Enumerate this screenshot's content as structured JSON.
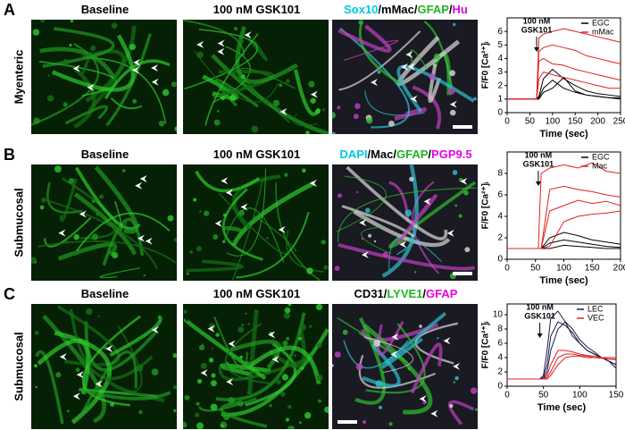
{
  "panels": [
    {
      "letter": "A",
      "row_label": "Myenteric",
      "images": [
        {
          "title": [
            {
              "text": "Baseline",
              "color": "#000000"
            }
          ]
        },
        {
          "title": [
            {
              "text": "100 nM GSK101",
              "color": "#000000"
            }
          ]
        },
        {
          "title": [
            {
              "text": "Sox10",
              "color": "#00c8e6"
            },
            {
              "text": "/mMac/",
              "color": "#000000"
            },
            {
              "text": "GFAP",
              "color": "#22b422"
            },
            {
              "text": "/",
              "color": "#000000"
            },
            {
              "text": "Hu",
              "color": "#e600e6"
            }
          ]
        }
      ]
    },
    {
      "letter": "B",
      "row_label": "Submucosal",
      "images": [
        {
          "title": [
            {
              "text": "Baseline",
              "color": "#000000"
            }
          ]
        },
        {
          "title": [
            {
              "text": "100 nM GSK101",
              "color": "#000000"
            }
          ]
        },
        {
          "title": [
            {
              "text": "DAPI",
              "color": "#00c8e6"
            },
            {
              "text": "/Mac/",
              "color": "#000000"
            },
            {
              "text": "GFAP",
              "color": "#22b422"
            },
            {
              "text": "/",
              "color": "#000000"
            },
            {
              "text": "PGP9.5",
              "color": "#e600e6"
            }
          ]
        }
      ]
    },
    {
      "letter": "C",
      "row_label": "Submucosal",
      "images": [
        {
          "title": [
            {
              "text": "Baseline",
              "color": "#000000"
            }
          ]
        },
        {
          "title": [
            {
              "text": "100 nM GSK101",
              "color": "#000000"
            }
          ]
        },
        {
          "title": [
            {
              "text": "CD31/",
              "color": "#000000"
            },
            {
              "text": "LYVE1",
              "color": "#22b422"
            },
            {
              "text": "/",
              "color": "#000000"
            },
            {
              "text": "GFAP",
              "color": "#e600e6"
            }
          ]
        }
      ]
    }
  ],
  "chart_data": [
    {
      "type": "line",
      "xlabel": "Time (sec)",
      "ylabel": "F/F0 [Ca²⁺]ᵢ",
      "annotation": [
        "100 nM",
        "GSK101"
      ],
      "stimulus_time": 65,
      "xlim": [
        0,
        250
      ],
      "xticks": [
        0,
        50,
        100,
        150,
        200,
        250
      ],
      "ylim": [
        0,
        7
      ],
      "yticks": [
        0,
        1,
        2,
        3,
        4,
        5,
        6
      ],
      "x": [
        0,
        25,
        50,
        60,
        65,
        70,
        80,
        100,
        125,
        150,
        175,
        200,
        225,
        250
      ],
      "groups": [
        {
          "name": "EGC",
          "color": "#000000",
          "traces": [
            [
              1,
              1,
              1,
              1,
              1,
              1.2,
              2.5,
              3.2,
              2.5,
              2,
              1.6,
              1.4,
              1.3,
              1.2
            ],
            [
              1,
              1,
              1,
              1,
              1,
              1.1,
              1.8,
              2.4,
              1.8,
              1.5,
              1.3,
              1.2,
              1.1,
              1.1
            ],
            [
              1,
              1,
              1,
              1,
              1,
              1,
              1.5,
              1.8,
              2.6,
              1.6,
              1.3,
              1.2,
              1.1,
              1
            ]
          ]
        },
        {
          "name": "mMac",
          "color": "#e02020",
          "traces": [
            [
              1,
              1,
              1,
              1,
              1,
              5.5,
              5.8,
              6,
              6.2,
              6,
              5.8,
              5.6,
              5.4,
              5.2
            ],
            [
              1,
              1,
              1,
              1,
              1,
              4.5,
              4.8,
              5,
              4.8,
              4.6,
              4.2,
              4,
              3.8,
              3.6
            ],
            [
              1,
              1,
              1,
              1,
              1,
              3.8,
              4,
              3.6,
              3.5,
              3.2,
              3,
              2.8,
              2.6,
              2.4
            ],
            [
              1,
              1,
              1,
              1,
              1,
              2.5,
              3,
              2.8,
              2.6,
              2.4,
              2.2,
              2,
              1.8,
              1.8
            ]
          ]
        }
      ]
    },
    {
      "type": "line",
      "xlabel": "Time (sec)",
      "ylabel": "F/F0 [Ca²⁺]ᵢ",
      "annotation": [
        "100 nM",
        "GSK101"
      ],
      "stimulus_time": 55,
      "xlim": [
        0,
        200
      ],
      "xticks": [
        0,
        50,
        100,
        150,
        200
      ],
      "ylim": [
        0,
        10
      ],
      "yticks": [
        0,
        2,
        4,
        6,
        8
      ],
      "x": [
        0,
        25,
        50,
        55,
        60,
        75,
        100,
        125,
        150,
        175,
        200
      ],
      "groups": [
        {
          "name": "EGC",
          "color": "#000000",
          "traces": [
            [
              1,
              1,
              1,
              1,
              1,
              2,
              2.5,
              2.2,
              1.8,
              1.6,
              1.4
            ],
            [
              1,
              1,
              1,
              1,
              1,
              1.5,
              1.8,
              1.6,
              1.4,
              1.2,
              1.1
            ],
            [
              1,
              1,
              1,
              1,
              1,
              1,
              1.3,
              1.2,
              1.1,
              1,
              1
            ]
          ]
        },
        {
          "name": "Mac",
          "color": "#e02020",
          "traces": [
            [
              1,
              1,
              1,
              1,
              8,
              8.5,
              8.8,
              8.5,
              9,
              8.2,
              8
            ],
            [
              1,
              1,
              1,
              1,
              1,
              6.5,
              6.8,
              6.5,
              6.3,
              6,
              5.8
            ],
            [
              1,
              1,
              1,
              1,
              1,
              4.5,
              5,
              5.5,
              5.2,
              5.4,
              5
            ],
            [
              1,
              1,
              1,
              1,
              1,
              1.2,
              3.5,
              4,
              4.2,
              4.3,
              4.5
            ]
          ]
        }
      ]
    },
    {
      "type": "line",
      "xlabel": "Time (sec)",
      "ylabel": "F/F0 [Ca²⁺]ᵢ",
      "annotation": [
        "100 nM",
        "GSK101"
      ],
      "stimulus_time": 45,
      "xlim": [
        0,
        150
      ],
      "xticks": [
        0,
        50,
        100,
        150
      ],
      "ylim": [
        0,
        11.5
      ],
      "yticks": [
        0,
        2,
        4,
        6,
        8,
        10
      ],
      "x": [
        0,
        20,
        40,
        45,
        50,
        55,
        60,
        70,
        80,
        90,
        100,
        110,
        120,
        130,
        140,
        150
      ],
      "groups": [
        {
          "name": "LEC",
          "color": "#1a1a4a",
          "traces": [
            [
              1,
              1,
              1,
              1,
              1.5,
              5,
              9.5,
              10.5,
              9,
              7,
              6,
              5,
              4.5,
              4,
              3.5,
              3
            ],
            [
              1,
              1,
              1,
              1,
              1.2,
              3,
              7,
              9,
              8.5,
              7.5,
              6,
              5,
              4.5,
              4,
              3.5,
              2.5
            ],
            [
              1,
              1,
              1,
              1,
              1,
              2,
              5,
              8,
              9,
              8,
              6.5,
              5.5,
              4.8,
              4,
              3.5,
              3
            ]
          ]
        },
        {
          "name": "VEC",
          "color": "#e02020",
          "traces": [
            [
              1,
              1,
              1,
              1,
              1,
              1.5,
              3,
              5,
              5,
              4.8,
              4.5,
              4.3,
              4.2,
              4,
              4,
              4
            ],
            [
              1,
              1,
              1,
              1,
              1,
              1.2,
              2,
              4,
              4.5,
              4.5,
              4.3,
              4.2,
              4,
              4,
              3.8,
              3.8
            ],
            [
              1,
              1,
              1,
              1,
              1,
              1,
              1.5,
              3,
              4,
              4.2,
              4.2,
              4,
              4,
              3.9,
              3.8,
              3.7
            ]
          ]
        }
      ]
    }
  ]
}
